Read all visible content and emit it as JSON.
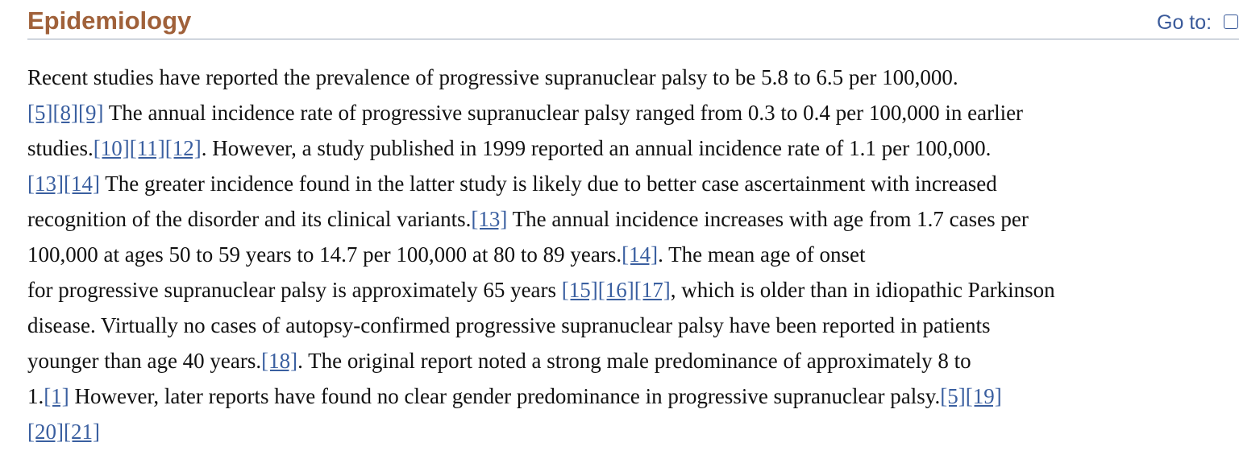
{
  "header": {
    "title": "Epidemiology",
    "goto": "Go to:"
  },
  "paragraph": {
    "lines": [
      [
        "Recent studies have reported the prevalence of progressive supranuclear palsy to be 5.8 to 6.5 per 100,000."
      ],
      [
        {
          "link": "[5]"
        },
        {
          "link": "[8]"
        },
        {
          "link": "[9]"
        },
        " The annual incidence rate of progressive supranuclear palsy ranged from 0.3 to 0.4 per 100,000 in earlier"
      ],
      [
        "studies.",
        {
          "link": "[10]"
        },
        {
          "link": "[11]"
        },
        {
          "link": "[12]"
        },
        ". However, a study published in 1999 reported an annual incidence rate of 1.1 per 100,000."
      ],
      [
        {
          "link": "[13]"
        },
        {
          "link": "[14]"
        },
        " The greater incidence found in the latter study is likely due to better case ascertainment with increased"
      ],
      [
        "recognition of the disorder and its clinical variants.",
        {
          "link": "[13]"
        },
        " The annual incidence increases with age from 1.7 cases per"
      ],
      [
        "100,000 at ages 50 to 59 years to 14.7 per 100,000 at 80 to 89 years.",
        {
          "link": "[14]"
        },
        ". The mean age of onset"
      ],
      [
        "for progressive supranuclear palsy is approximately 65 years ",
        {
          "link": "[15]"
        },
        {
          "link": "[16]"
        },
        {
          "link": "[17]"
        },
        ", which is older than in idiopathic Parkinson"
      ],
      [
        "disease. Virtually no cases of autopsy-confirmed progressive supranuclear palsy have been reported in patients"
      ],
      [
        "younger than age 40 years.",
        {
          "link": "[18]"
        },
        ". The original report noted a strong male predominance of approximately 8 to"
      ],
      [
        "1.",
        {
          "link": "[1]"
        },
        " However, later reports have found no clear gender predominance in progressive supranuclear palsy.",
        {
          "link": "[5]"
        },
        {
          "link": "[19]"
        }
      ],
      [
        {
          "link": "[20]"
        },
        {
          "link": "[21]"
        }
      ]
    ]
  }
}
